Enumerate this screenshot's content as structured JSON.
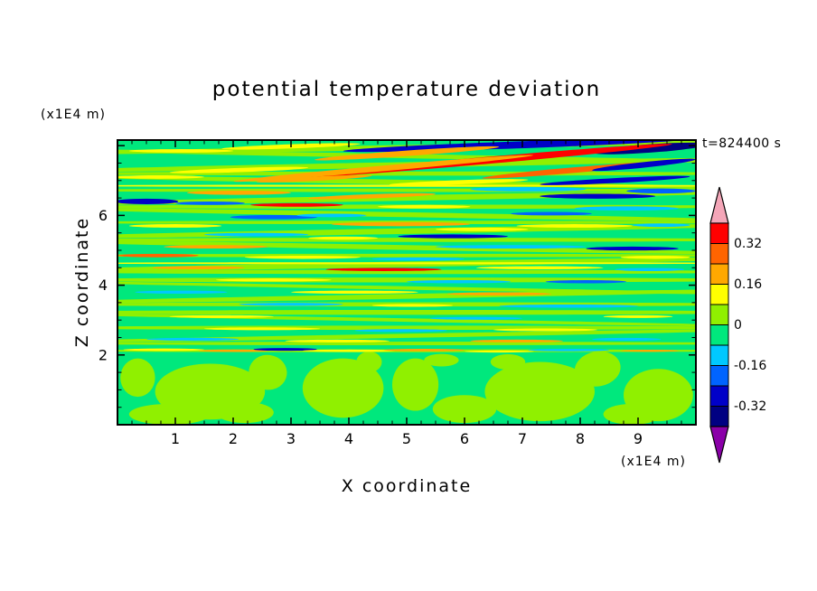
{
  "title": "potential temperature deviation",
  "timestamp": "t=824400 s",
  "axes": {
    "x_label": "X coordinate",
    "y_label": "Z coordinate",
    "x_unit": "(x1E4 m)",
    "y_unit": "(x1E4 m)"
  },
  "chart_data": {
    "type": "filled_contour",
    "title": "potential temperature deviation",
    "xlabel": "X coordinate",
    "ylabel": "Z coordinate",
    "x_unit_scale": "(x1E4 m)",
    "y_unit_scale": "(x1E4 m)",
    "time_stamp": "t=824400 s",
    "xlim": [
      0,
      10
    ],
    "zlim": [
      0,
      8.16
    ],
    "x_major_ticks": [
      1,
      2,
      3,
      4,
      5,
      6,
      7,
      8,
      9
    ],
    "x_minor_step": 0.25,
    "y_major_ticks": [
      2,
      4,
      6
    ],
    "y_minor_step": 0.5,
    "contour_interval": 0.08,
    "colorbar": {
      "labels": [
        "0.32",
        "0.16",
        "0",
        "-0.16",
        "-0.32"
      ],
      "levels_top_to_bottom": [
        0.4,
        0.32,
        0.24,
        0.16,
        0.08,
        0,
        -0.08,
        -0.16,
        -0.24,
        -0.32,
        -0.4
      ],
      "segment_colors_top_to_bottom": [
        "#ff0000",
        "#ff6400",
        "#ffa800",
        "#ffff00",
        "#90f000",
        "#00e87d",
        "#00c8ff",
        "#0064ff",
        "#0000c8",
        "#000082"
      ],
      "over_color": "#f4a6b8",
      "under_color": "#8a00a8"
    },
    "field": {
      "base_color": "#00e87d",
      "palette": [
        "#00e87d",
        "#90f000",
        "#ffff00",
        "#ffa800",
        "#ff6400",
        "#ff0000",
        "#00c8ff",
        "#0064ff",
        "#0000c8",
        "#000082"
      ],
      "streaks": [
        [
          5,
          7.95,
          6.6,
          0.07,
          1,
          -1
        ],
        [
          5,
          7.7,
          6.6,
          0.06,
          1,
          1
        ],
        [
          5,
          7.45,
          6.6,
          0.08,
          1,
          -1
        ],
        [
          5,
          7.2,
          6.6,
          0.06,
          1,
          0
        ],
        [
          5,
          6.95,
          6.6,
          0.07,
          1,
          1
        ],
        [
          5,
          6.72,
          6.6,
          0.05,
          1,
          0
        ],
        [
          5,
          6.5,
          6.6,
          0.08,
          1,
          -1
        ],
        [
          5,
          6.25,
          6.6,
          0.06,
          1,
          0
        ],
        [
          5,
          6.02,
          6.6,
          0.07,
          1,
          1
        ],
        [
          5,
          5.8,
          6.6,
          0.05,
          1,
          0
        ],
        [
          5,
          5.55,
          6.6,
          0.08,
          1,
          -1
        ],
        [
          5,
          5.3,
          6.6,
          0.06,
          1,
          0
        ],
        [
          5,
          5.08,
          6.6,
          0.07,
          1,
          1
        ],
        [
          5,
          4.85,
          6.6,
          0.05,
          1,
          0
        ],
        [
          5,
          4.6,
          6.6,
          0.08,
          1,
          -1
        ],
        [
          5,
          4.38,
          6.6,
          0.06,
          1,
          0
        ],
        [
          5,
          4.15,
          6.6,
          0.07,
          1,
          0
        ],
        [
          5,
          3.92,
          6.6,
          0.05,
          1,
          1
        ],
        [
          5,
          3.68,
          6.6,
          0.07,
          1,
          -1
        ],
        [
          5,
          3.45,
          6.6,
          0.06,
          1,
          0
        ],
        [
          5,
          3.22,
          6.6,
          0.07,
          1,
          0
        ],
        [
          5,
          3.0,
          6.6,
          0.05,
          1,
          1
        ],
        [
          5,
          2.78,
          6.6,
          0.06,
          1,
          0
        ],
        [
          5,
          2.55,
          6.6,
          0.06,
          1,
          -1
        ],
        [
          5,
          2.33,
          6.6,
          0.05,
          1,
          0
        ],
        [
          5,
          2.12,
          6.6,
          0.04,
          1,
          0
        ],
        [
          5,
          6.85,
          6.6,
          0.03,
          2,
          0
        ],
        [
          5,
          4.63,
          6.6,
          0.028,
          2,
          0
        ],
        [
          1.6,
          0.95,
          0.95,
          0.8,
          1,
          0
        ],
        [
          0.35,
          1.35,
          0.3,
          0.55,
          1,
          0
        ],
        [
          0.9,
          0.3,
          0.7,
          0.3,
          1,
          0
        ],
        [
          2.6,
          1.5,
          0.33,
          0.5,
          1,
          8
        ],
        [
          3.9,
          1.05,
          0.7,
          0.85,
          1,
          0
        ],
        [
          4.35,
          1.8,
          0.22,
          0.3,
          1,
          0
        ],
        [
          5.15,
          1.15,
          0.4,
          0.75,
          1,
          0
        ],
        [
          6.0,
          0.45,
          0.55,
          0.4,
          1,
          0
        ],
        [
          7.3,
          0.95,
          0.95,
          0.85,
          1,
          0
        ],
        [
          8.3,
          1.6,
          0.4,
          0.5,
          1,
          -10
        ],
        [
          9.35,
          0.85,
          0.6,
          0.75,
          1,
          0
        ],
        [
          5.6,
          1.85,
          0.3,
          0.18,
          1,
          0
        ],
        [
          6.75,
          1.8,
          0.3,
          0.22,
          1,
          0
        ],
        [
          2.2,
          0.35,
          0.5,
          0.3,
          1,
          0
        ],
        [
          8.9,
          0.3,
          0.5,
          0.3,
          1,
          0
        ],
        [
          6.9,
          8.02,
          3.0,
          0.1,
          8,
          -2
        ],
        [
          9.2,
          7.92,
          1.0,
          0.12,
          9,
          -4
        ],
        [
          3.0,
          7.98,
          1.2,
          0.06,
          2,
          -2
        ],
        [
          1.1,
          7.85,
          0.9,
          0.05,
          2,
          0
        ],
        [
          5.0,
          7.78,
          1.6,
          0.08,
          3,
          -4
        ],
        [
          6.2,
          7.55,
          3.4,
          0.1,
          5,
          -5
        ],
        [
          4.6,
          7.35,
          2.6,
          0.08,
          3,
          -5
        ],
        [
          7.9,
          7.3,
          1.6,
          0.08,
          4,
          -5
        ],
        [
          9.1,
          7.45,
          0.9,
          0.08,
          8,
          -6
        ],
        [
          8.6,
          7.0,
          1.3,
          0.07,
          8,
          -3
        ],
        [
          2.1,
          7.3,
          1.2,
          0.06,
          2,
          -2
        ],
        [
          0.7,
          7.1,
          0.8,
          0.05,
          2,
          0
        ],
        [
          3.4,
          7.05,
          1.0,
          0.06,
          3,
          -3
        ],
        [
          5.9,
          6.95,
          1.2,
          0.06,
          2,
          -2
        ],
        [
          7.1,
          6.75,
          1.0,
          0.06,
          6,
          0
        ],
        [
          9.4,
          6.7,
          0.6,
          0.07,
          7,
          0
        ],
        [
          8.3,
          6.55,
          1.0,
          0.07,
          8,
          0
        ],
        [
          0.5,
          6.4,
          0.55,
          0.08,
          8,
          0
        ],
        [
          1.6,
          6.35,
          0.6,
          0.05,
          7,
          0
        ],
        [
          2.1,
          6.65,
          0.9,
          0.06,
          3,
          0
        ],
        [
          4.4,
          6.55,
          1.1,
          0.06,
          3,
          -2
        ],
        [
          3.1,
          6.3,
          0.8,
          0.05,
          5,
          0
        ],
        [
          5.3,
          6.25,
          0.8,
          0.05,
          2,
          0
        ],
        [
          8.8,
          6.2,
          0.9,
          0.06,
          6,
          0
        ],
        [
          7.5,
          6.05,
          0.7,
          0.05,
          7,
          0
        ],
        [
          2.7,
          5.95,
          0.75,
          0.06,
          7,
          0
        ],
        [
          3.7,
          6.0,
          0.6,
          0.05,
          6,
          0
        ],
        [
          1.0,
          5.7,
          0.8,
          0.05,
          2,
          0
        ],
        [
          4.9,
          5.75,
          1.2,
          0.06,
          3,
          0
        ],
        [
          6.3,
          5.6,
          0.8,
          0.05,
          2,
          0
        ],
        [
          7.9,
          5.7,
          1.0,
          0.05,
          2,
          0
        ],
        [
          9.4,
          5.72,
          0.5,
          0.05,
          6,
          0
        ],
        [
          2.4,
          5.45,
          0.9,
          0.05,
          6,
          0
        ],
        [
          5.8,
          5.4,
          0.95,
          0.055,
          8,
          0
        ],
        [
          3.9,
          5.35,
          0.6,
          0.045,
          2,
          0
        ],
        [
          1.7,
          5.1,
          0.9,
          0.05,
          3,
          0
        ],
        [
          6.8,
          5.1,
          1.3,
          0.05,
          6,
          0
        ],
        [
          8.9,
          5.05,
          0.8,
          0.055,
          8,
          0
        ],
        [
          0.7,
          4.85,
          0.7,
          0.05,
          4,
          0
        ],
        [
          3.2,
          4.8,
          1.0,
          0.045,
          2,
          0
        ],
        [
          5.2,
          4.75,
          0.8,
          0.045,
          6,
          0
        ],
        [
          9.3,
          4.8,
          0.6,
          0.045,
          2,
          0
        ],
        [
          1.4,
          4.5,
          0.8,
          0.045,
          3,
          0
        ],
        [
          4.6,
          4.45,
          1.0,
          0.045,
          5,
          0
        ],
        [
          7.3,
          4.5,
          1.1,
          0.045,
          2,
          0
        ],
        [
          9.2,
          4.45,
          0.6,
          0.045,
          6,
          0
        ],
        [
          2.7,
          4.15,
          1.0,
          0.045,
          2,
          0
        ],
        [
          5.9,
          4.1,
          0.9,
          0.045,
          6,
          0
        ],
        [
          8.1,
          4.1,
          0.7,
          0.045,
          7,
          0
        ],
        [
          1.1,
          3.8,
          0.8,
          0.045,
          6,
          0
        ],
        [
          4.1,
          3.8,
          1.1,
          0.045,
          2,
          0
        ],
        [
          6.6,
          3.75,
          0.9,
          0.045,
          3,
          0
        ],
        [
          3.0,
          3.45,
          0.9,
          0.045,
          6,
          0
        ],
        [
          5.1,
          3.42,
          0.7,
          0.04,
          2,
          0
        ],
        [
          7.8,
          3.4,
          1.2,
          0.045,
          6,
          0
        ],
        [
          1.8,
          3.1,
          0.9,
          0.04,
          2,
          0
        ],
        [
          6.2,
          3.05,
          0.8,
          0.04,
          6,
          0
        ],
        [
          9.0,
          3.1,
          0.6,
          0.04,
          2,
          0
        ],
        [
          2.5,
          2.75,
          1.0,
          0.04,
          2,
          0
        ],
        [
          4.9,
          2.7,
          0.8,
          0.04,
          6,
          0
        ],
        [
          7.4,
          2.72,
          0.9,
          0.04,
          2,
          0
        ],
        [
          1.3,
          2.45,
          0.8,
          0.04,
          6,
          0
        ],
        [
          3.8,
          2.4,
          0.9,
          0.04,
          2,
          0
        ],
        [
          6.9,
          2.4,
          0.8,
          0.04,
          3,
          0
        ],
        [
          8.8,
          2.45,
          0.6,
          0.04,
          6,
          0
        ],
        [
          0.8,
          2.15,
          0.7,
          0.035,
          2,
          0
        ],
        [
          2.0,
          2.12,
          0.6,
          0.035,
          3,
          0
        ],
        [
          2.9,
          2.16,
          0.55,
          0.04,
          8,
          0
        ],
        [
          4.0,
          2.12,
          0.8,
          0.035,
          2,
          0
        ],
        [
          5.3,
          2.14,
          0.7,
          0.035,
          3,
          0
        ],
        [
          6.6,
          2.1,
          0.6,
          0.03,
          2,
          0
        ],
        [
          7.8,
          2.14,
          0.7,
          0.035,
          6,
          0
        ],
        [
          9.2,
          2.12,
          0.5,
          0.03,
          3,
          0
        ]
      ]
    }
  }
}
